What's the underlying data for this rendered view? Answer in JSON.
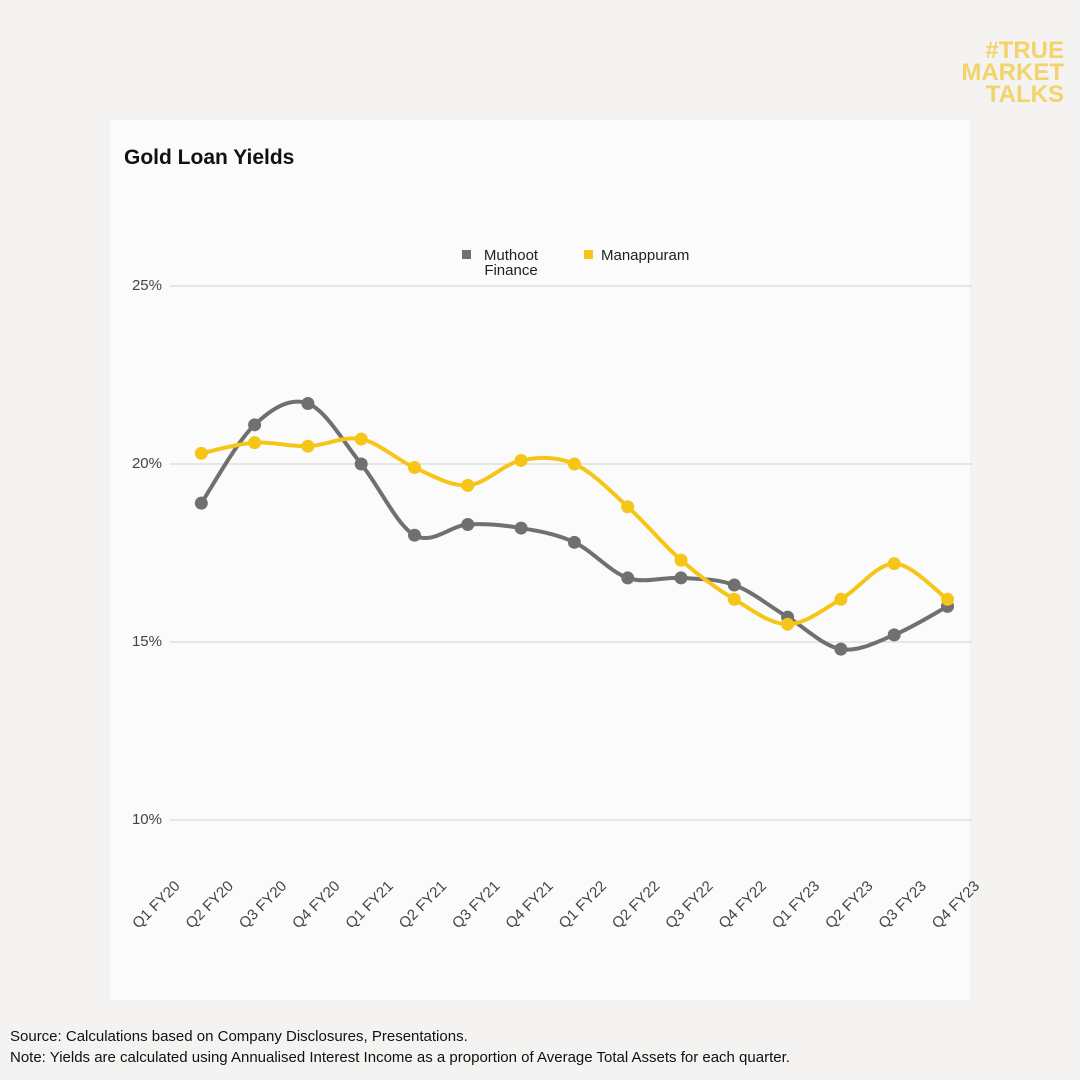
{
  "logo": [
    "#TRUE",
    "MARKET",
    "TALKS"
  ],
  "chart_data": {
    "type": "line",
    "title": "Gold Loan Yields",
    "categories": [
      "Q1 FY20",
      "Q2 FY20",
      "Q3 FY20",
      "Q4 FY20",
      "Q1 FY21",
      "Q2 FY21",
      "Q3 FY21",
      "Q4 FY21",
      "Q1 FY22",
      "Q2 FY22",
      "Q3 FY22",
      "Q4 FY22",
      "Q1 FY23",
      "Q2 FY23",
      "Q3 FY23",
      "Q4 FY23"
    ],
    "series": [
      {
        "name": "Muthoot Finance",
        "color": "#707070",
        "values": [
          null,
          18.9,
          21.1,
          21.7,
          20.0,
          18.0,
          18.3,
          18.2,
          17.8,
          16.8,
          16.8,
          16.6,
          15.7,
          14.8,
          15.2,
          16.0
        ]
      },
      {
        "name": "Manappuram",
        "color": "#f5c518",
        "values": [
          null,
          20.3,
          20.6,
          20.5,
          20.7,
          19.9,
          19.4,
          20.1,
          20.0,
          18.8,
          17.3,
          16.2,
          15.5,
          16.2,
          17.2,
          16.2
        ]
      }
    ],
    "ylim": [
      10,
      25
    ],
    "yticks": [
      {
        "value": 10,
        "label": "10%"
      },
      {
        "value": 15,
        "label": "15%"
      },
      {
        "value": 20,
        "label": "20%"
      },
      {
        "value": 25,
        "label": "25%"
      }
    ],
    "grid": true,
    "legend": "top",
    "source": "Source: Calculations based on Company Disclosures, Presentations.",
    "note": "Note: Yields are calculated using Annualised Interest Income as a proportion of Average Total Assets for each quarter."
  }
}
